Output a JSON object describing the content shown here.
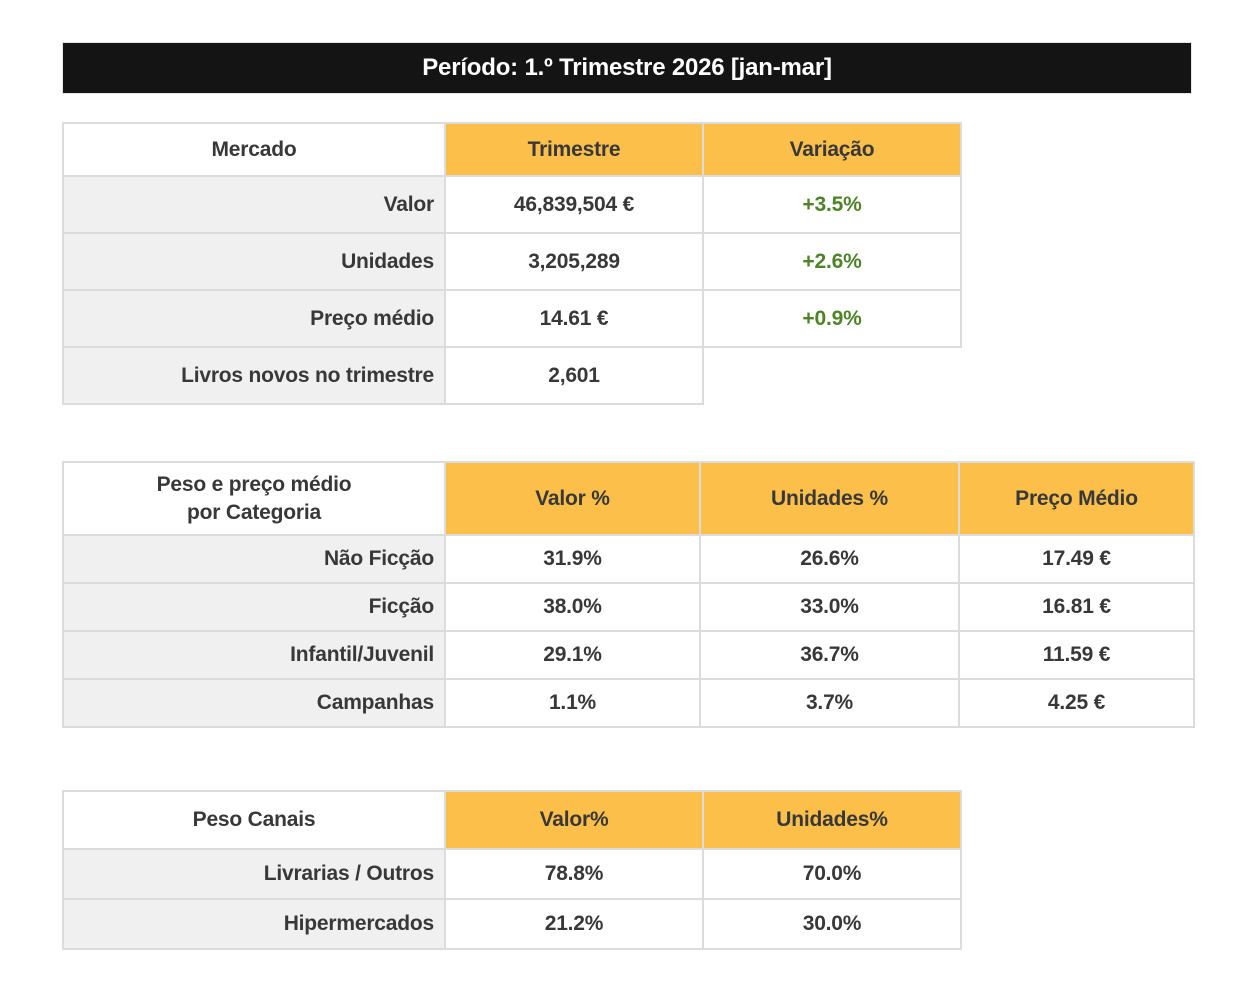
{
  "banner": {
    "title": "Período: 1.º Trimestre 2026 [jan-mar]"
  },
  "colors": {
    "accent_orange": "#FBBF4A",
    "positive_green": "#4F8329",
    "banner_black": "#141414",
    "label_gray": "#F0F0F0",
    "gridline_gray": "#DCDCDC"
  },
  "market_table": {
    "header_label": "Mercado",
    "columns": [
      "Trimestre",
      "Variação"
    ],
    "rows": [
      {
        "label": "Valor",
        "trimestre": "46,839,504 €",
        "variacao": "+3.5%"
      },
      {
        "label": "Unidades",
        "trimestre": "3,205,289",
        "variacao": "+2.6%"
      },
      {
        "label": "Preço médio",
        "trimestre": "14.61 €",
        "variacao": "+0.9%"
      },
      {
        "label": "Livros novos no trimestre",
        "trimestre": "2,601",
        "variacao": ""
      }
    ]
  },
  "category_table": {
    "header_label_line1": "Peso e preço médio",
    "header_label_line2": "por Categoria",
    "columns": [
      "Valor %",
      "Unidades %",
      "Preço Médio"
    ],
    "rows": [
      {
        "label": "Não Ficção",
        "valor_pct": "31.9%",
        "unidades_pct": "26.6%",
        "preco_medio": "17.49 €"
      },
      {
        "label": "Ficção",
        "valor_pct": "38.0%",
        "unidades_pct": "33.0%",
        "preco_medio": "16.81 €"
      },
      {
        "label": "Infantil/Juvenil",
        "valor_pct": "29.1%",
        "unidades_pct": "36.7%",
        "preco_medio": "11.59 €"
      },
      {
        "label": "Campanhas",
        "valor_pct": "1.1%",
        "unidades_pct": "3.7%",
        "preco_medio": "4.25 €"
      }
    ]
  },
  "channels_table": {
    "header_label": "Peso Canais",
    "columns": [
      "Valor%",
      "Unidades%"
    ],
    "rows": [
      {
        "label": "Livrarias / Outros",
        "valor_pct": "78.8%",
        "unidades_pct": "70.0%"
      },
      {
        "label": "Hipermercados",
        "valor_pct": "21.2%",
        "unidades_pct": "30.0%"
      }
    ]
  }
}
